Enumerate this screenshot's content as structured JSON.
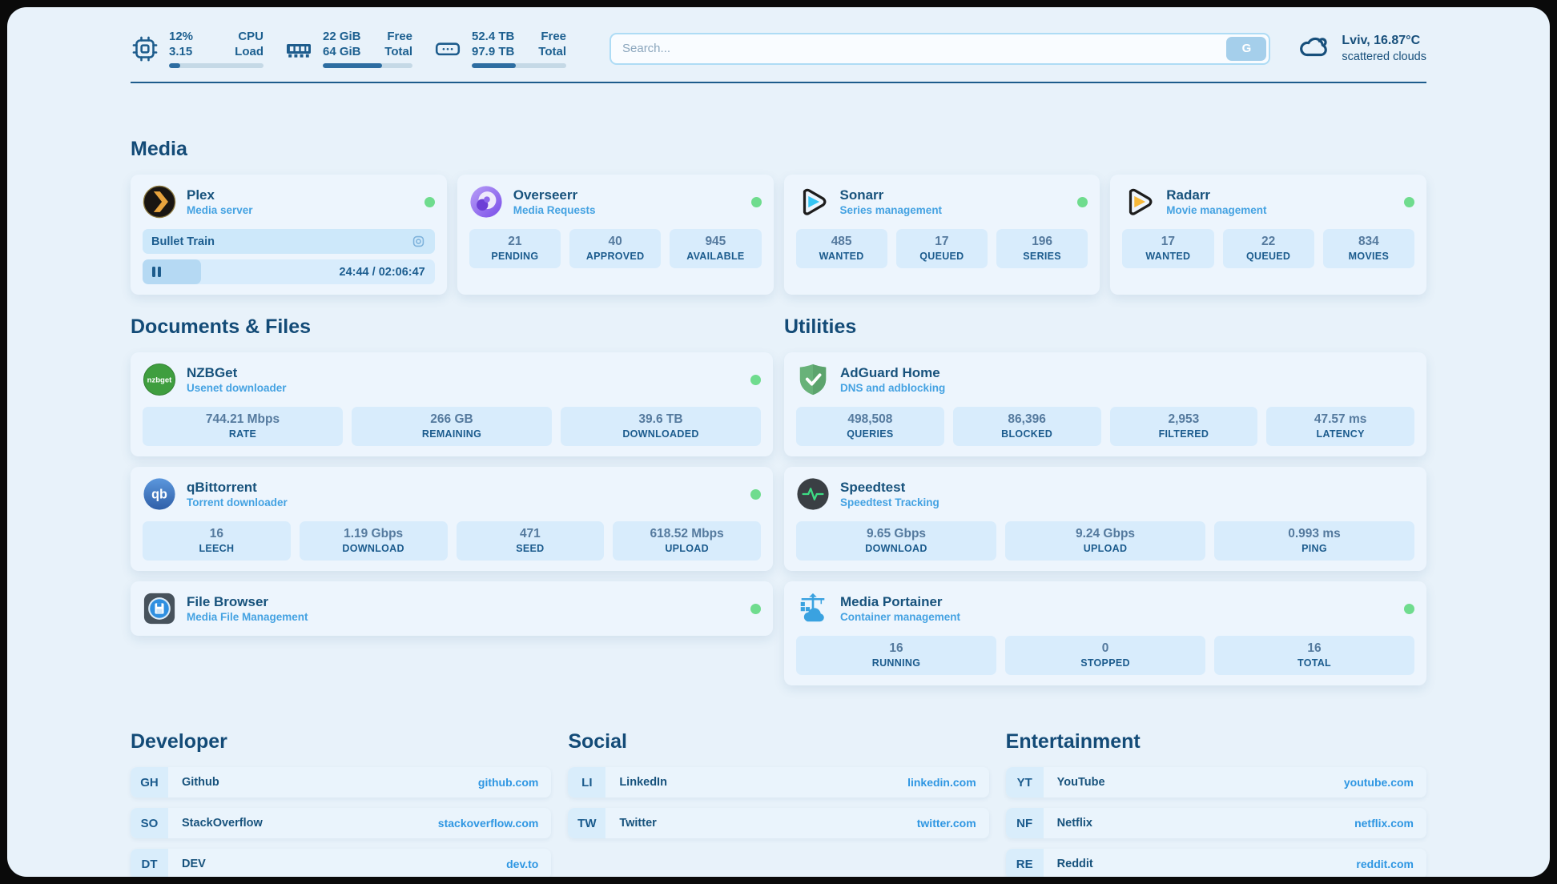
{
  "topbar": {
    "cpu": {
      "top_value": "12%",
      "top_label": "CPU",
      "bottom_value": "3.15",
      "bottom_label": "Load",
      "progress_pct": 12
    },
    "memory": {
      "top_value": "22 GiB",
      "top_label": "Free",
      "bottom_value": "64 GiB",
      "bottom_label": "Total",
      "progress_pct": 66
    },
    "disk": {
      "top_value": "52.4 TB",
      "top_label": "Free",
      "bottom_value": "97.9 TB",
      "bottom_label": "Total",
      "progress_pct": 47
    },
    "search": {
      "placeholder": "Search...",
      "button_label": "G"
    },
    "weather": {
      "location_temp": "Lviv, 16.87°C",
      "condition": "scattered clouds"
    }
  },
  "sections": {
    "media": "Media",
    "documents": "Documents & Files",
    "utilities": "Utilities"
  },
  "apps": {
    "plex": {
      "name": "Plex",
      "subtitle": "Media server",
      "online": true,
      "now_playing": {
        "title": "Bullet Train",
        "time": "24:44 / 02:06:47",
        "progress_pct": 20,
        "state": "paused"
      }
    },
    "overseerr": {
      "name": "Overseerr",
      "subtitle": "Media Requests",
      "online": true,
      "stats": [
        {
          "value": "21",
          "label": "PENDING"
        },
        {
          "value": "40",
          "label": "APPROVED"
        },
        {
          "value": "945",
          "label": "AVAILABLE"
        }
      ]
    },
    "sonarr": {
      "name": "Sonarr",
      "subtitle": "Series management",
      "online": true,
      "stats": [
        {
          "value": "485",
          "label": "WANTED"
        },
        {
          "value": "17",
          "label": "QUEUED"
        },
        {
          "value": "196",
          "label": "SERIES"
        }
      ]
    },
    "radarr": {
      "name": "Radarr",
      "subtitle": "Movie management",
      "online": true,
      "stats": [
        {
          "value": "17",
          "label": "WANTED"
        },
        {
          "value": "22",
          "label": "QUEUED"
        },
        {
          "value": "834",
          "label": "MOVIES"
        }
      ]
    },
    "nzbget": {
      "name": "NZBGet",
      "subtitle": "Usenet downloader",
      "online": true,
      "icon_text": "nzbget",
      "stats": [
        {
          "value": "744.21 Mbps",
          "label": "RATE"
        },
        {
          "value": "266 GB",
          "label": "REMAINING"
        },
        {
          "value": "39.6 TB",
          "label": "DOWNLOADED"
        }
      ]
    },
    "qbittorrent": {
      "name": "qBittorrent",
      "subtitle": "Torrent downloader",
      "online": true,
      "icon_text": "qb",
      "stats": [
        {
          "value": "16",
          "label": "LEECH"
        },
        {
          "value": "1.19 Gbps",
          "label": "DOWNLOAD"
        },
        {
          "value": "471",
          "label": "SEED"
        },
        {
          "value": "618.52 Mbps",
          "label": "UPLOAD"
        }
      ]
    },
    "filebrowser": {
      "name": "File Browser",
      "subtitle": "Media File Management",
      "online": true
    },
    "adguard": {
      "name": "AdGuard Home",
      "subtitle": "DNS and adblocking",
      "online": false,
      "stats": [
        {
          "value": "498,508",
          "label": "QUERIES"
        },
        {
          "value": "86,396",
          "label": "BLOCKED"
        },
        {
          "value": "2,953",
          "label": "FILTERED"
        },
        {
          "value": "47.57 ms",
          "label": "LATENCY"
        }
      ]
    },
    "speedtest": {
      "name": "Speedtest",
      "subtitle": "Speedtest Tracking",
      "online": false,
      "stats": [
        {
          "value": "9.65 Gbps",
          "label": "DOWNLOAD"
        },
        {
          "value": "9.24 Gbps",
          "label": "UPLOAD"
        },
        {
          "value": "0.993 ms",
          "label": "PING"
        }
      ]
    },
    "portainer": {
      "name": "Media Portainer",
      "subtitle": "Container management",
      "online": true,
      "stats": [
        {
          "value": "16",
          "label": "RUNNING"
        },
        {
          "value": "0",
          "label": "STOPPED"
        },
        {
          "value": "16",
          "label": "TOTAL"
        }
      ]
    }
  },
  "bookmarks": {
    "developer": {
      "title": "Developer",
      "links": [
        {
          "abbr": "GH",
          "name": "Github",
          "url": "github.com"
        },
        {
          "abbr": "SO",
          "name": "StackOverflow",
          "url": "stackoverflow.com"
        },
        {
          "abbr": "DT",
          "name": "DEV",
          "url": "dev.to"
        }
      ]
    },
    "social": {
      "title": "Social",
      "links": [
        {
          "abbr": "LI",
          "name": "LinkedIn",
          "url": "linkedin.com"
        },
        {
          "abbr": "TW",
          "name": "Twitter",
          "url": "twitter.com"
        }
      ]
    },
    "entertainment": {
      "title": "Entertainment",
      "links": [
        {
          "abbr": "YT",
          "name": "YouTube",
          "url": "youtube.com"
        },
        {
          "abbr": "NF",
          "name": "Netflix",
          "url": "netflix.com"
        },
        {
          "abbr": "RE",
          "name": "Reddit",
          "url": "reddit.com"
        }
      ]
    }
  },
  "colors": {
    "accent": "#1d5c8c",
    "link": "#2e96e2",
    "status_ok": "#6fdc8e",
    "background": "#e8f2fa"
  }
}
